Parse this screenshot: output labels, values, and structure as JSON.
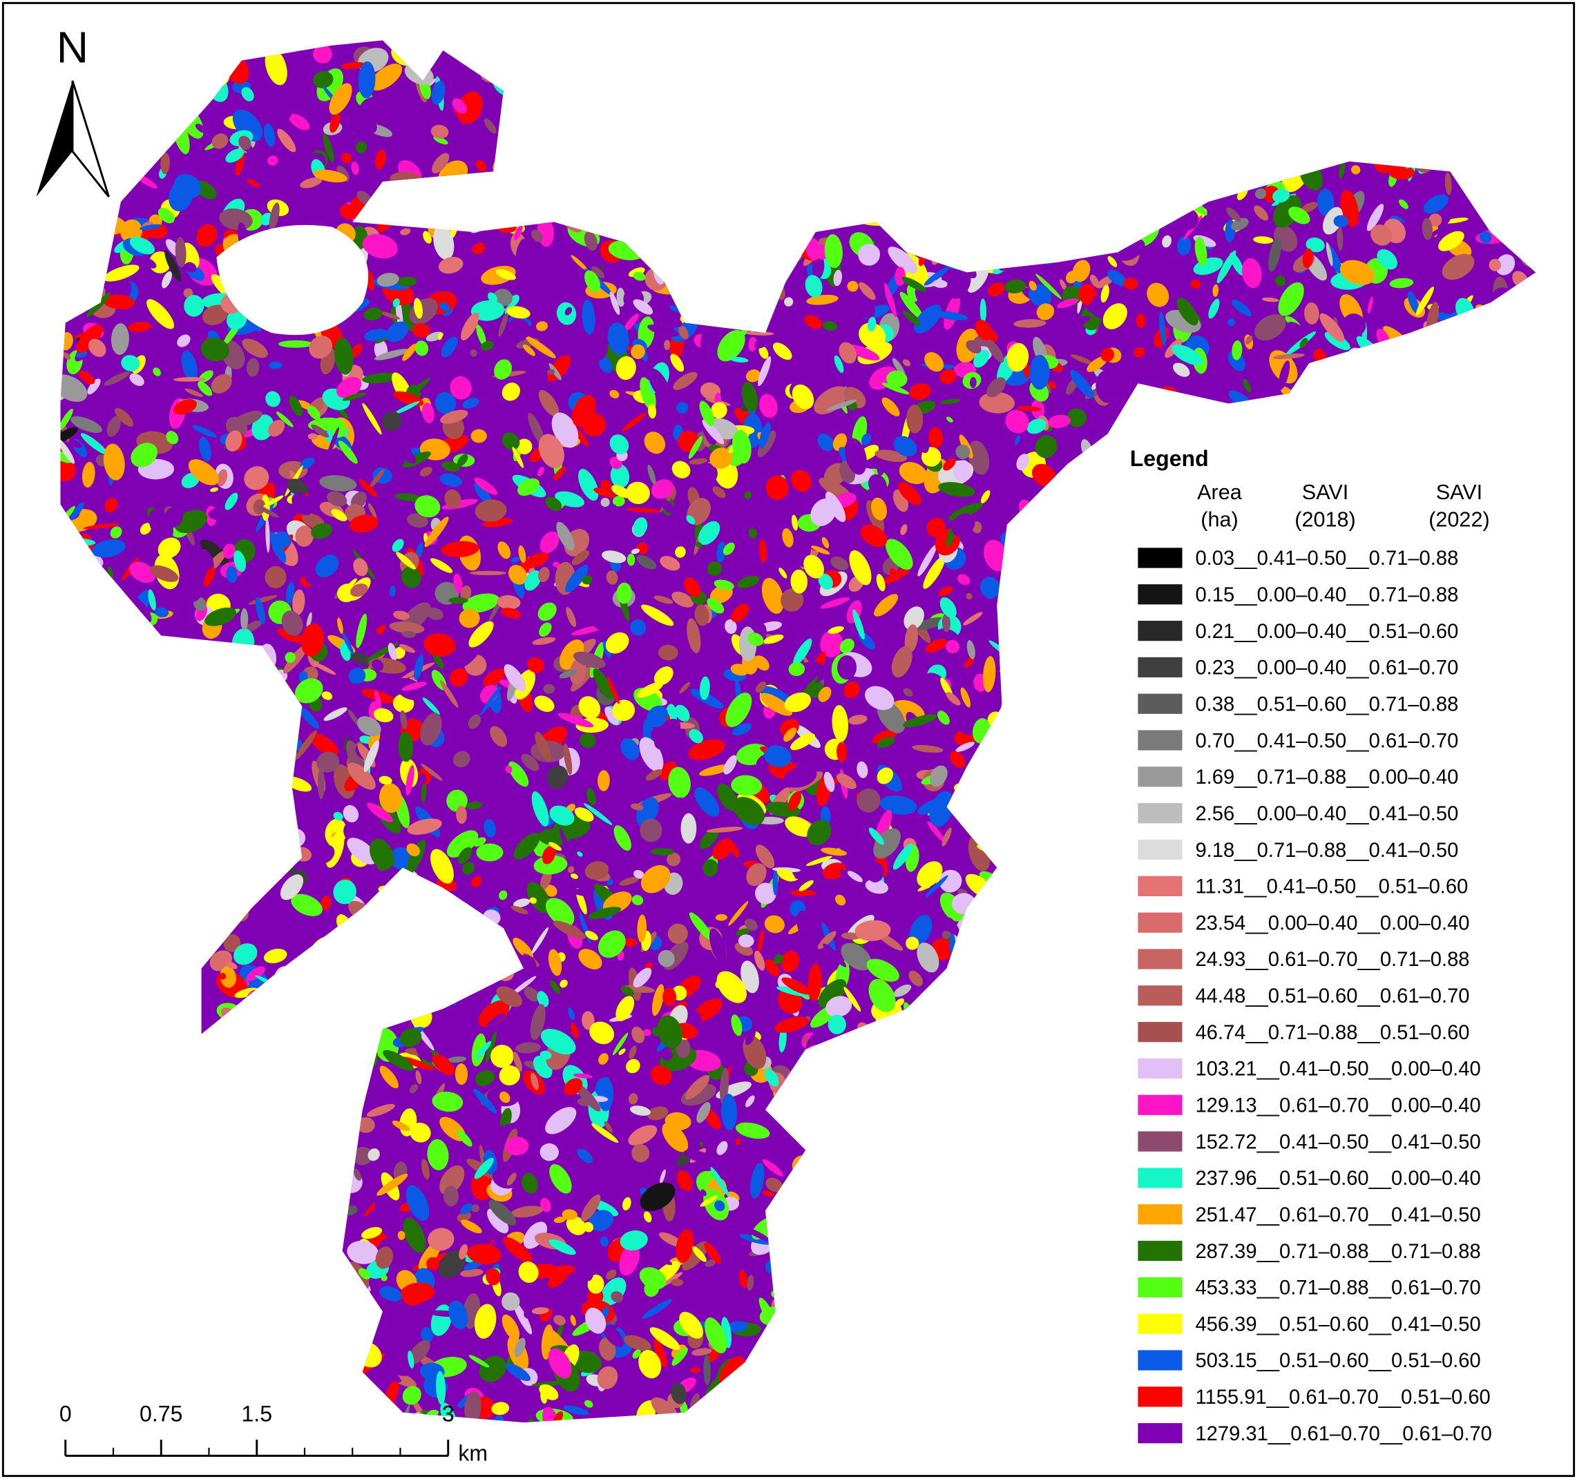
{
  "north": "N",
  "legend": {
    "title": "Legend",
    "headers": [
      [
        "Area",
        "(ha)"
      ],
      [
        "SAVI",
        "(2018)"
      ],
      [
        "SAVI",
        "(2022)"
      ]
    ],
    "entries": [
      {
        "label": "0.03__0.41–0.50__0.71–0.88",
        "color": "#000000"
      },
      {
        "label": "0.15__0.00–0.40__0.71–0.88",
        "color": "#141414"
      },
      {
        "label": "0.21__0.00–0.40__0.51–0.60",
        "color": "#282828"
      },
      {
        "label": "0.23__0.00–0.40__0.61–0.70",
        "color": "#3f3f3f"
      },
      {
        "label": "0.38__0.51–0.60__0.71–0.88",
        "color": "#5c5c5c"
      },
      {
        "label": "0.70__0.41–0.50__0.61–0.70",
        "color": "#7a7a7a"
      },
      {
        "label": "1.69__0.71–0.88__0.00–0.40",
        "color": "#9a9a9a"
      },
      {
        "label": "2.56__0.00–0.40__0.41–0.50",
        "color": "#bdbdbd"
      },
      {
        "label": "9.18__0.71–0.88__0.41–0.50",
        "color": "#dcdcdc"
      },
      {
        "label": "11.31__0.41–0.50__0.51–0.60",
        "color": "#e57373"
      },
      {
        "label": "23.54__0.00–0.40__0.00–0.40",
        "color": "#d96b6b"
      },
      {
        "label": "24.93__0.61–0.70__0.71–0.88",
        "color": "#c86464"
      },
      {
        "label": "44.48__0.51–0.60__0.61–0.70",
        "color": "#b85c5c"
      },
      {
        "label": "46.74__0.71–0.88__0.51–0.60",
        "color": "#a85050"
      },
      {
        "label": "103.21__0.41–0.50__0.00–0.40",
        "color": "#e2bff7"
      },
      {
        "label": "129.13__0.61–0.70__0.00–0.40",
        "color": "#ff14c8"
      },
      {
        "label": "152.72__0.41–0.50__0.41–0.50",
        "color": "#8c4a6e"
      },
      {
        "label": "237.96__0.51–0.60__0.00–0.40",
        "color": "#14f5c8"
      },
      {
        "label": "251.47__0.61–0.70__0.41–0.50",
        "color": "#ffa500"
      },
      {
        "label": "287.39__0.71–0.88__0.71–0.88",
        "color": "#237300"
      },
      {
        "label": "453.33__0.71–0.88__0.61–0.70",
        "color": "#55ff14"
      },
      {
        "label": "456.39__0.51–0.60__0.41–0.50",
        "color": "#ffff00"
      },
      {
        "label": "503.15__0.51–0.60__0.51–0.60",
        "color": "#0a5ae6"
      },
      {
        "label": "1155.91__0.61–0.70__0.51–0.60",
        "color": "#ff0000"
      },
      {
        "label": "1279.31__0.61–0.70__0.61–0.70",
        "color": "#8000b4"
      }
    ]
  },
  "scale_bar": {
    "ticks": [
      0,
      0.75,
      1.5,
      3
    ],
    "unit": "km"
  }
}
